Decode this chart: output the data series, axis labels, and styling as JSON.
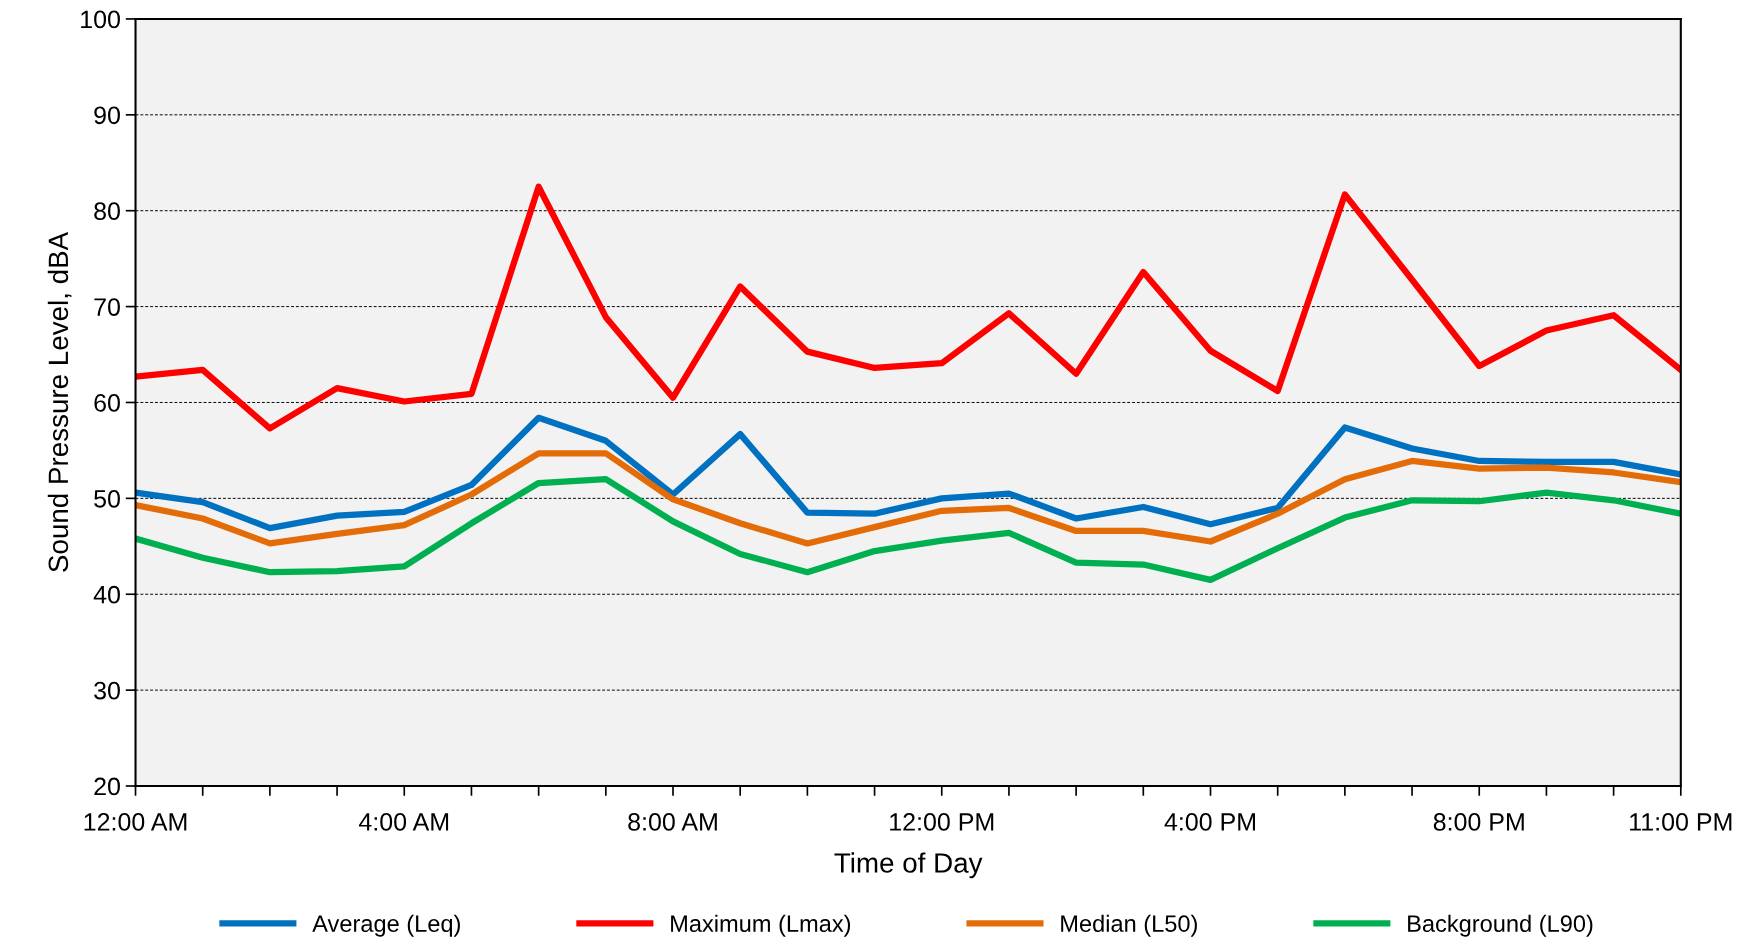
{
  "chart_data": {
    "type": "line",
    "xlabel": "Time of Day",
    "ylabel": "Sound Pressure Level, dBA",
    "x": [
      0,
      1,
      2,
      3,
      4,
      5,
      6,
      7,
      8,
      9,
      10,
      11,
      12,
      13,
      14,
      15,
      16,
      17,
      18,
      19,
      20,
      21,
      22,
      23
    ],
    "series": [
      {
        "name": "Average (Leq)",
        "color": "#0070c0",
        "values": [
          50.6,
          49.6,
          46.9,
          48.2,
          48.6,
          51.4,
          58.4,
          56.0,
          50.4,
          56.7,
          48.5,
          48.4,
          50.0,
          50.5,
          47.9,
          49.1,
          47.3,
          49.0,
          57.4,
          55.2,
          53.9,
          53.8,
          53.8,
          52.5
        ]
      },
      {
        "name": "Maximum (Lmax)",
        "color": "#ff0000",
        "values": [
          62.7,
          63.4,
          57.3,
          61.5,
          60.1,
          60.9,
          82.5,
          68.9,
          60.5,
          72.1,
          65.3,
          63.6,
          64.1,
          69.3,
          63.0,
          73.6,
          65.4,
          61.2,
          81.7,
          72.8,
          63.8,
          67.5,
          69.1,
          63.4
        ]
      },
      {
        "name": "Median (L50)",
        "color": "#e36c09",
        "values": [
          49.3,
          47.9,
          45.3,
          46.3,
          47.2,
          50.4,
          54.7,
          54.7,
          49.9,
          47.4,
          45.3,
          47.0,
          48.7,
          49.0,
          46.6,
          46.6,
          45.5,
          48.4,
          52.0,
          53.9,
          53.1,
          53.2,
          52.7,
          51.7
        ]
      },
      {
        "name": "Background (L90)",
        "color": "#00b050",
        "values": [
          45.8,
          43.8,
          42.3,
          42.4,
          42.9,
          47.4,
          51.6,
          52.0,
          47.6,
          44.2,
          42.3,
          44.5,
          45.6,
          46.4,
          43.3,
          43.1,
          41.5,
          44.8,
          48.0,
          49.8,
          49.7,
          50.6,
          49.8,
          48.4
        ]
      }
    ],
    "xlim": [
      0,
      23
    ],
    "ylim": [
      20,
      100
    ],
    "xticks": [
      {
        "value": 0,
        "label": "12:00 AM"
      },
      {
        "value": 1,
        "label": null
      },
      {
        "value": 2,
        "label": null
      },
      {
        "value": 3,
        "label": null
      },
      {
        "value": 4,
        "label": "4:00 AM"
      },
      {
        "value": 5,
        "label": null
      },
      {
        "value": 6,
        "label": null
      },
      {
        "value": 7,
        "label": null
      },
      {
        "value": 8,
        "label": "8:00 AM"
      },
      {
        "value": 9,
        "label": null
      },
      {
        "value": 10,
        "label": null
      },
      {
        "value": 11,
        "label": null
      },
      {
        "value": 12,
        "label": "12:00 PM"
      },
      {
        "value": 13,
        "label": null
      },
      {
        "value": 14,
        "label": null
      },
      {
        "value": 15,
        "label": null
      },
      {
        "value": 16,
        "label": "4:00 PM"
      },
      {
        "value": 17,
        "label": null
      },
      {
        "value": 18,
        "label": null
      },
      {
        "value": 19,
        "label": null
      },
      {
        "value": 20,
        "label": "8:00 PM"
      },
      {
        "value": 21,
        "label": null
      },
      {
        "value": 22,
        "label": null
      },
      {
        "value": 23,
        "label": "11:00 PM"
      }
    ],
    "yticks": [
      20,
      30,
      40,
      50,
      60,
      70,
      80,
      90,
      100
    ],
    "grid": "y",
    "legend": "bottom",
    "marker": "none",
    "line_style": "solid"
  }
}
